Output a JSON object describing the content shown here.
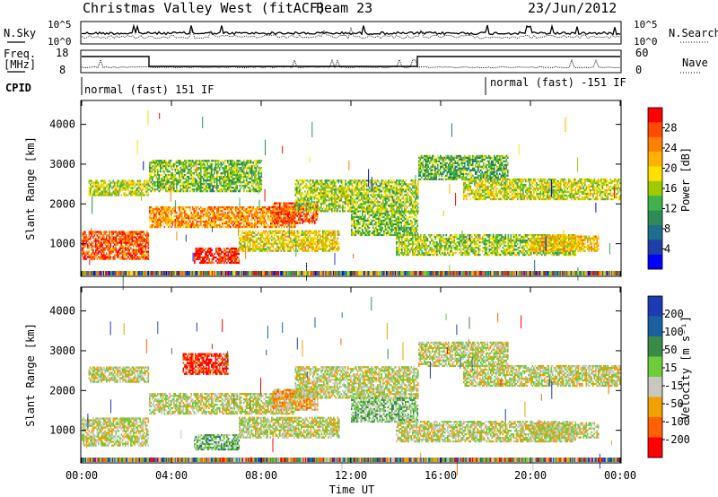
{
  "header": {
    "title": "Christmas Valley West (fitACF)",
    "beam": "Beam 23",
    "date": "23/Jun/2012"
  },
  "summary_panels": {
    "nsky": {
      "label": "N.Sky",
      "ticks": [
        "10^5",
        "10^0"
      ]
    },
    "nsearch": {
      "label": "N.Search",
      "ticks": [
        "10^5",
        "10^0"
      ]
    },
    "freq": {
      "label_line1": "Freq.",
      "label_line2": "[MHz]",
      "ticks": [
        "18",
        "8"
      ]
    },
    "nave": {
      "label": "Nave",
      "ticks": [
        "60",
        "0"
      ]
    },
    "cpid": {
      "label": "CPID",
      "segments": [
        {
          "text": "normal (fast) 151 IF",
          "start_hour": 0
        },
        {
          "text": "normal (fast) -151 IF",
          "start_hour": 18
        }
      ]
    }
  },
  "chart_data": [
    {
      "type": "heatmap",
      "name": "power",
      "ylabel": "Slant Range [km]",
      "xlabel": "Time UT",
      "xlim_hours": [
        0,
        24
      ],
      "ylim": [
        180,
        4600
      ],
      "y_ticks": [
        1000,
        2000,
        3000,
        4000
      ],
      "x_ticks": [
        "00:00",
        "04:00",
        "08:00",
        "12:00",
        "16:00",
        "20:00",
        "00:00"
      ],
      "colorbar": {
        "label": "Power [dB]",
        "ticks": [
          "28",
          "24",
          "20",
          "16",
          "12",
          "8",
          "4"
        ],
        "colors": [
          "#ff0000",
          "#ff4a00",
          "#ff8000",
          "#ffb000",
          "#ffe000",
          "#9ccc00",
          "#3fb34a",
          "#2e8b57",
          "#1e6e8c",
          "#1f3fa8",
          "#0000ff"
        ]
      },
      "regions": [
        {
          "t0": 0.0,
          "t1": 3.0,
          "r0": 600,
          "r1": 1300,
          "level": 0.85
        },
        {
          "t0": 0.3,
          "t1": 3.0,
          "r0": 2200,
          "r1": 2600,
          "level": 0.55
        },
        {
          "t0": 3.0,
          "t1": 9.5,
          "r0": 1400,
          "r1": 1900,
          "level": 0.75
        },
        {
          "t0": 5.0,
          "t1": 7.0,
          "r0": 500,
          "r1": 900,
          "level": 0.95
        },
        {
          "t0": 7.0,
          "t1": 11.5,
          "r0": 800,
          "r1": 1300,
          "level": 0.6
        },
        {
          "t0": 8.5,
          "t1": 10.5,
          "r0": 1500,
          "r1": 2000,
          "level": 0.85
        },
        {
          "t0": 3.0,
          "t1": 8.0,
          "r0": 2300,
          "r1": 3100,
          "level": 0.45
        },
        {
          "t0": 9.5,
          "t1": 15.0,
          "r0": 1800,
          "r1": 2600,
          "level": 0.5
        },
        {
          "t0": 12.0,
          "t1": 15.0,
          "r0": 1200,
          "r1": 1800,
          "level": 0.45
        },
        {
          "t0": 14.0,
          "t1": 22.0,
          "r0": 700,
          "r1": 1200,
          "level": 0.5
        },
        {
          "t0": 15.0,
          "t1": 19.0,
          "r0": 2600,
          "r1": 3200,
          "level": 0.4
        },
        {
          "t0": 17.0,
          "t1": 24.0,
          "r0": 2100,
          "r1": 2600,
          "level": 0.55
        },
        {
          "t0": 20.0,
          "t1": 23.0,
          "r0": 800,
          "r1": 1200,
          "level": 0.65
        }
      ]
    },
    {
      "type": "heatmap",
      "name": "velocity",
      "ylabel": "Slant Range [km]",
      "xlabel": "Time UT",
      "xlim_hours": [
        0,
        24
      ],
      "ylim": [
        180,
        4600
      ],
      "y_ticks": [
        1000,
        2000,
        3000,
        4000
      ],
      "x_ticks": [
        "00:00",
        "04:00",
        "08:00",
        "12:00",
        "16:00",
        "20:00",
        "00:00"
      ],
      "colorbar": {
        "label": "Velocity [m s⁻¹]",
        "ticks": [
          "200",
          "100",
          "50",
          "15",
          "-15",
          "-50",
          "-100",
          "-200"
        ],
        "colors": [
          "#1c3cb4",
          "#1a5fa0",
          "#3a8a4a",
          "#6ccc3a",
          "#c8c8c0",
          "#f0a000",
          "#ff6000",
          "#ff0000"
        ]
      },
      "regions": [
        {
          "t0": 0.0,
          "t1": 3.0,
          "r0": 600,
          "r1": 1300,
          "level": 0.45
        },
        {
          "t0": 0.3,
          "t1": 3.0,
          "r0": 2200,
          "r1": 2600,
          "level": 0.45
        },
        {
          "t0": 3.0,
          "t1": 9.5,
          "r0": 1400,
          "r1": 1900,
          "level": 0.45
        },
        {
          "t0": 5.0,
          "t1": 7.0,
          "r0": 500,
          "r1": 900,
          "level": 0.6
        },
        {
          "t0": 7.0,
          "t1": 11.5,
          "r0": 800,
          "r1": 1300,
          "level": 0.45
        },
        {
          "t0": 8.5,
          "t1": 10.5,
          "r0": 1500,
          "r1": 2000,
          "level": 0.3
        },
        {
          "t0": 4.5,
          "t1": 6.5,
          "r0": 2400,
          "r1": 2900,
          "level": 0.1
        },
        {
          "t0": 9.5,
          "t1": 15.0,
          "r0": 1800,
          "r1": 2600,
          "level": 0.45
        },
        {
          "t0": 12.0,
          "t1": 15.0,
          "r0": 1200,
          "r1": 1800,
          "level": 0.55
        },
        {
          "t0": 14.0,
          "t1": 22.0,
          "r0": 700,
          "r1": 1200,
          "level": 0.45
        },
        {
          "t0": 15.0,
          "t1": 19.0,
          "r0": 2600,
          "r1": 3200,
          "level": 0.45
        },
        {
          "t0": 17.0,
          "t1": 24.0,
          "r0": 2100,
          "r1": 2600,
          "level": 0.45
        },
        {
          "t0": 20.0,
          "t1": 23.0,
          "r0": 800,
          "r1": 1200,
          "level": 0.45
        }
      ]
    }
  ]
}
